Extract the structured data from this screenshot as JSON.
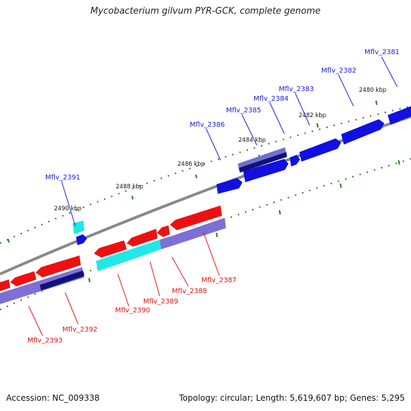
{
  "title": "Mycobacterium gilvum PYR-GCK, complete genome",
  "footer": {
    "accession": "Accession: NC_009338",
    "topology": "Topology: circular; Length: 5,619,607 bp; Genes: 5,295"
  },
  "colors": {
    "forward_cds": "#1010e0",
    "forward_dark": "#10107a",
    "forward_light": "#7070d0",
    "reverse_cds": "#ee1010",
    "reverse_light": "#7d6fd6",
    "cyan": "#20e8e8",
    "backbone": "#888888",
    "ticks": "#1a7a1a"
  },
  "scale_labels": [
    "2480 kbp",
    "2482 kbp",
    "2484 kbp",
    "2486 kbp",
    "2488 kbp",
    "2490 kbp"
  ],
  "genes_forward": [
    "Mflv_2381",
    "Mflv_2382",
    "Mflv_2383",
    "Mflv_2384",
    "Mflv_2385",
    "Mflv_2386",
    "Mflv_2391"
  ],
  "genes_reverse": [
    "Mflv_2387",
    "Mflv_2388",
    "Mflv_2389",
    "Mflv_2390",
    "Mflv_2392",
    "Mflv_2393"
  ]
}
